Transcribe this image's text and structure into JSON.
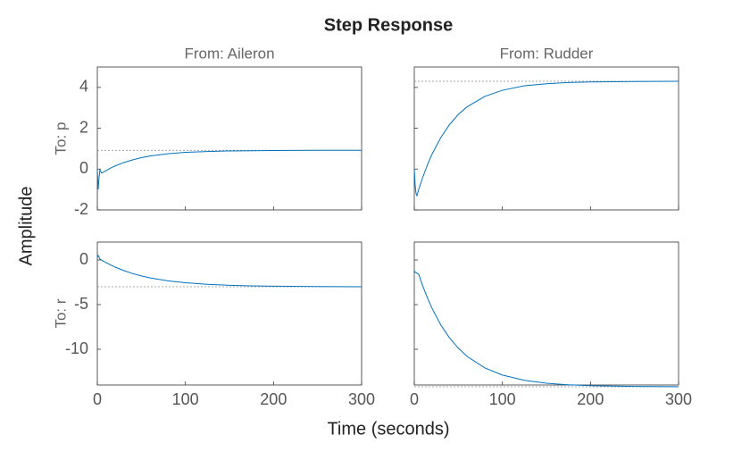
{
  "title": "Step Response",
  "x_label": "Time (seconds)",
  "y_label": "Amplitude",
  "chart_data": [
    {
      "type": "line",
      "title": "From: Aileron",
      "y_label": "To: p",
      "color": "#0072bd",
      "x": [
        0,
        1,
        2,
        3,
        5,
        8,
        10,
        15,
        20,
        30,
        40,
        50,
        60,
        80,
        100,
        125,
        150,
        175,
        200,
        250,
        300
      ],
      "values": [
        0,
        -1.0,
        -0.4,
        -0.05,
        -0.2,
        -0.12,
        -0.07,
        0.05,
        0.15,
        0.32,
        0.45,
        0.56,
        0.64,
        0.75,
        0.82,
        0.86,
        0.89,
        0.9,
        0.91,
        0.92,
        0.92
      ],
      "steady_state": 0.92,
      "xlim": [
        0,
        300
      ],
      "ylim": [
        -2,
        5
      ],
      "yticks": [
        -2,
        0,
        2,
        4
      ]
    },
    {
      "type": "line",
      "title": "From: Rudder",
      "color": "#0072bd",
      "x": [
        0,
        1,
        2,
        3,
        5,
        8,
        10,
        15,
        20,
        30,
        40,
        50,
        60,
        80,
        100,
        125,
        150,
        175,
        200,
        250,
        300
      ],
      "values": [
        0,
        -0.8,
        -1.2,
        -1.3,
        -1.0,
        -0.61,
        -0.36,
        0.22,
        0.72,
        1.54,
        2.18,
        2.68,
        3.05,
        3.56,
        3.86,
        4.08,
        4.18,
        4.24,
        4.27,
        4.29,
        4.3
      ],
      "steady_state": 4.3,
      "xlim": [
        0,
        300
      ],
      "ylim": [
        -2,
        5
      ]
    },
    {
      "type": "line",
      "y_label": "To: r",
      "color": "#0072bd",
      "x": [
        0,
        1,
        2,
        3,
        5,
        8,
        10,
        15,
        20,
        30,
        40,
        50,
        60,
        80,
        100,
        125,
        150,
        175,
        200,
        250,
        300
      ],
      "values": [
        0.3,
        0.5,
        0.3,
        0.1,
        -0.02,
        -0.19,
        -0.31,
        -0.56,
        -0.79,
        -1.19,
        -1.52,
        -1.79,
        -2.01,
        -2.34,
        -2.55,
        -2.73,
        -2.84,
        -2.9,
        -2.94,
        -2.98,
        -3.0
      ],
      "steady_state": -3.0,
      "xlim": [
        0,
        300
      ],
      "ylim": [
        -14,
        2
      ],
      "xticks": [
        0,
        100,
        200,
        300
      ],
      "yticks": [
        -10,
        -5,
        0
      ]
    },
    {
      "type": "line",
      "color": "#0072bd",
      "x": [
        0,
        1,
        2,
        3,
        5,
        8,
        10,
        15,
        20,
        30,
        40,
        50,
        60,
        80,
        100,
        125,
        150,
        175,
        200,
        250,
        300
      ],
      "values": [
        -1.2,
        -1.4,
        -1.4,
        -1.5,
        -1.6,
        -2.47,
        -3.01,
        -4.27,
        -5.38,
        -7.26,
        -8.73,
        -9.88,
        -10.8,
        -12.08,
        -12.89,
        -13.47,
        -13.8,
        -13.98,
        -14.08,
        -14.16,
        -14.19
      ],
      "steady_state": -14.2,
      "xlim": [
        0,
        300
      ],
      "ylim": [
        -14,
        2
      ],
      "xticks": [
        0,
        100,
        200,
        300
      ]
    }
  ]
}
